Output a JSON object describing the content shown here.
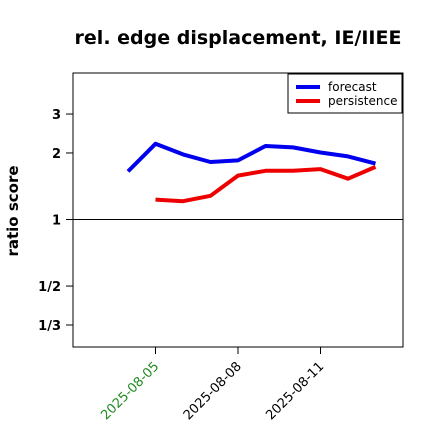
{
  "chart_data": {
    "type": "line",
    "title": "rel. edge displacement, IE/IIEE",
    "xlabel": "",
    "ylabel": "ratio score",
    "y_scale": "log",
    "ylim": [
      0.265,
      4.6
    ],
    "xlim": [
      "2025-08-02",
      "2025-08-14"
    ],
    "y_ticks": [
      {
        "label": "1/3",
        "value": 0.3333
      },
      {
        "label": "1/2",
        "value": 0.5
      },
      {
        "label": "1",
        "value": 1
      },
      {
        "label": "2",
        "value": 2
      },
      {
        "label": "3",
        "value": 3
      }
    ],
    "x_ticks": [
      {
        "label": "2025-08-05",
        "date": "2025-08-05",
        "color": "#228B22"
      },
      {
        "label": "2025-08-08",
        "date": "2025-08-08",
        "color": "#000000"
      },
      {
        "label": "2025-08-11",
        "date": "2025-08-11",
        "color": "#000000"
      }
    ],
    "reference_line": 1,
    "legend_position": "top-right",
    "series": [
      {
        "name": "forecast",
        "color": "#0000ee",
        "points": [
          {
            "x": "2025-08-04",
            "y": 1.65
          },
          {
            "x": "2025-08-05",
            "y": 2.2
          },
          {
            "x": "2025-08-06",
            "y": 1.97
          },
          {
            "x": "2025-08-07",
            "y": 1.82
          },
          {
            "x": "2025-08-08",
            "y": 1.85
          },
          {
            "x": "2025-08-09",
            "y": 2.15
          },
          {
            "x": "2025-08-10",
            "y": 2.12
          },
          {
            "x": "2025-08-11",
            "y": 2.01
          },
          {
            "x": "2025-08-12",
            "y": 1.93
          },
          {
            "x": "2025-08-13",
            "y": 1.79
          }
        ]
      },
      {
        "name": "persistence",
        "color": "#ee0000",
        "points": [
          {
            "x": "2025-08-05",
            "y": 1.23
          },
          {
            "x": "2025-08-06",
            "y": 1.21
          },
          {
            "x": "2025-08-07",
            "y": 1.28
          },
          {
            "x": "2025-08-08",
            "y": 1.58
          },
          {
            "x": "2025-08-09",
            "y": 1.66
          },
          {
            "x": "2025-08-10",
            "y": 1.66
          },
          {
            "x": "2025-08-11",
            "y": 1.69
          },
          {
            "x": "2025-08-12",
            "y": 1.53
          },
          {
            "x": "2025-08-13",
            "y": 1.73
          }
        ]
      }
    ]
  }
}
